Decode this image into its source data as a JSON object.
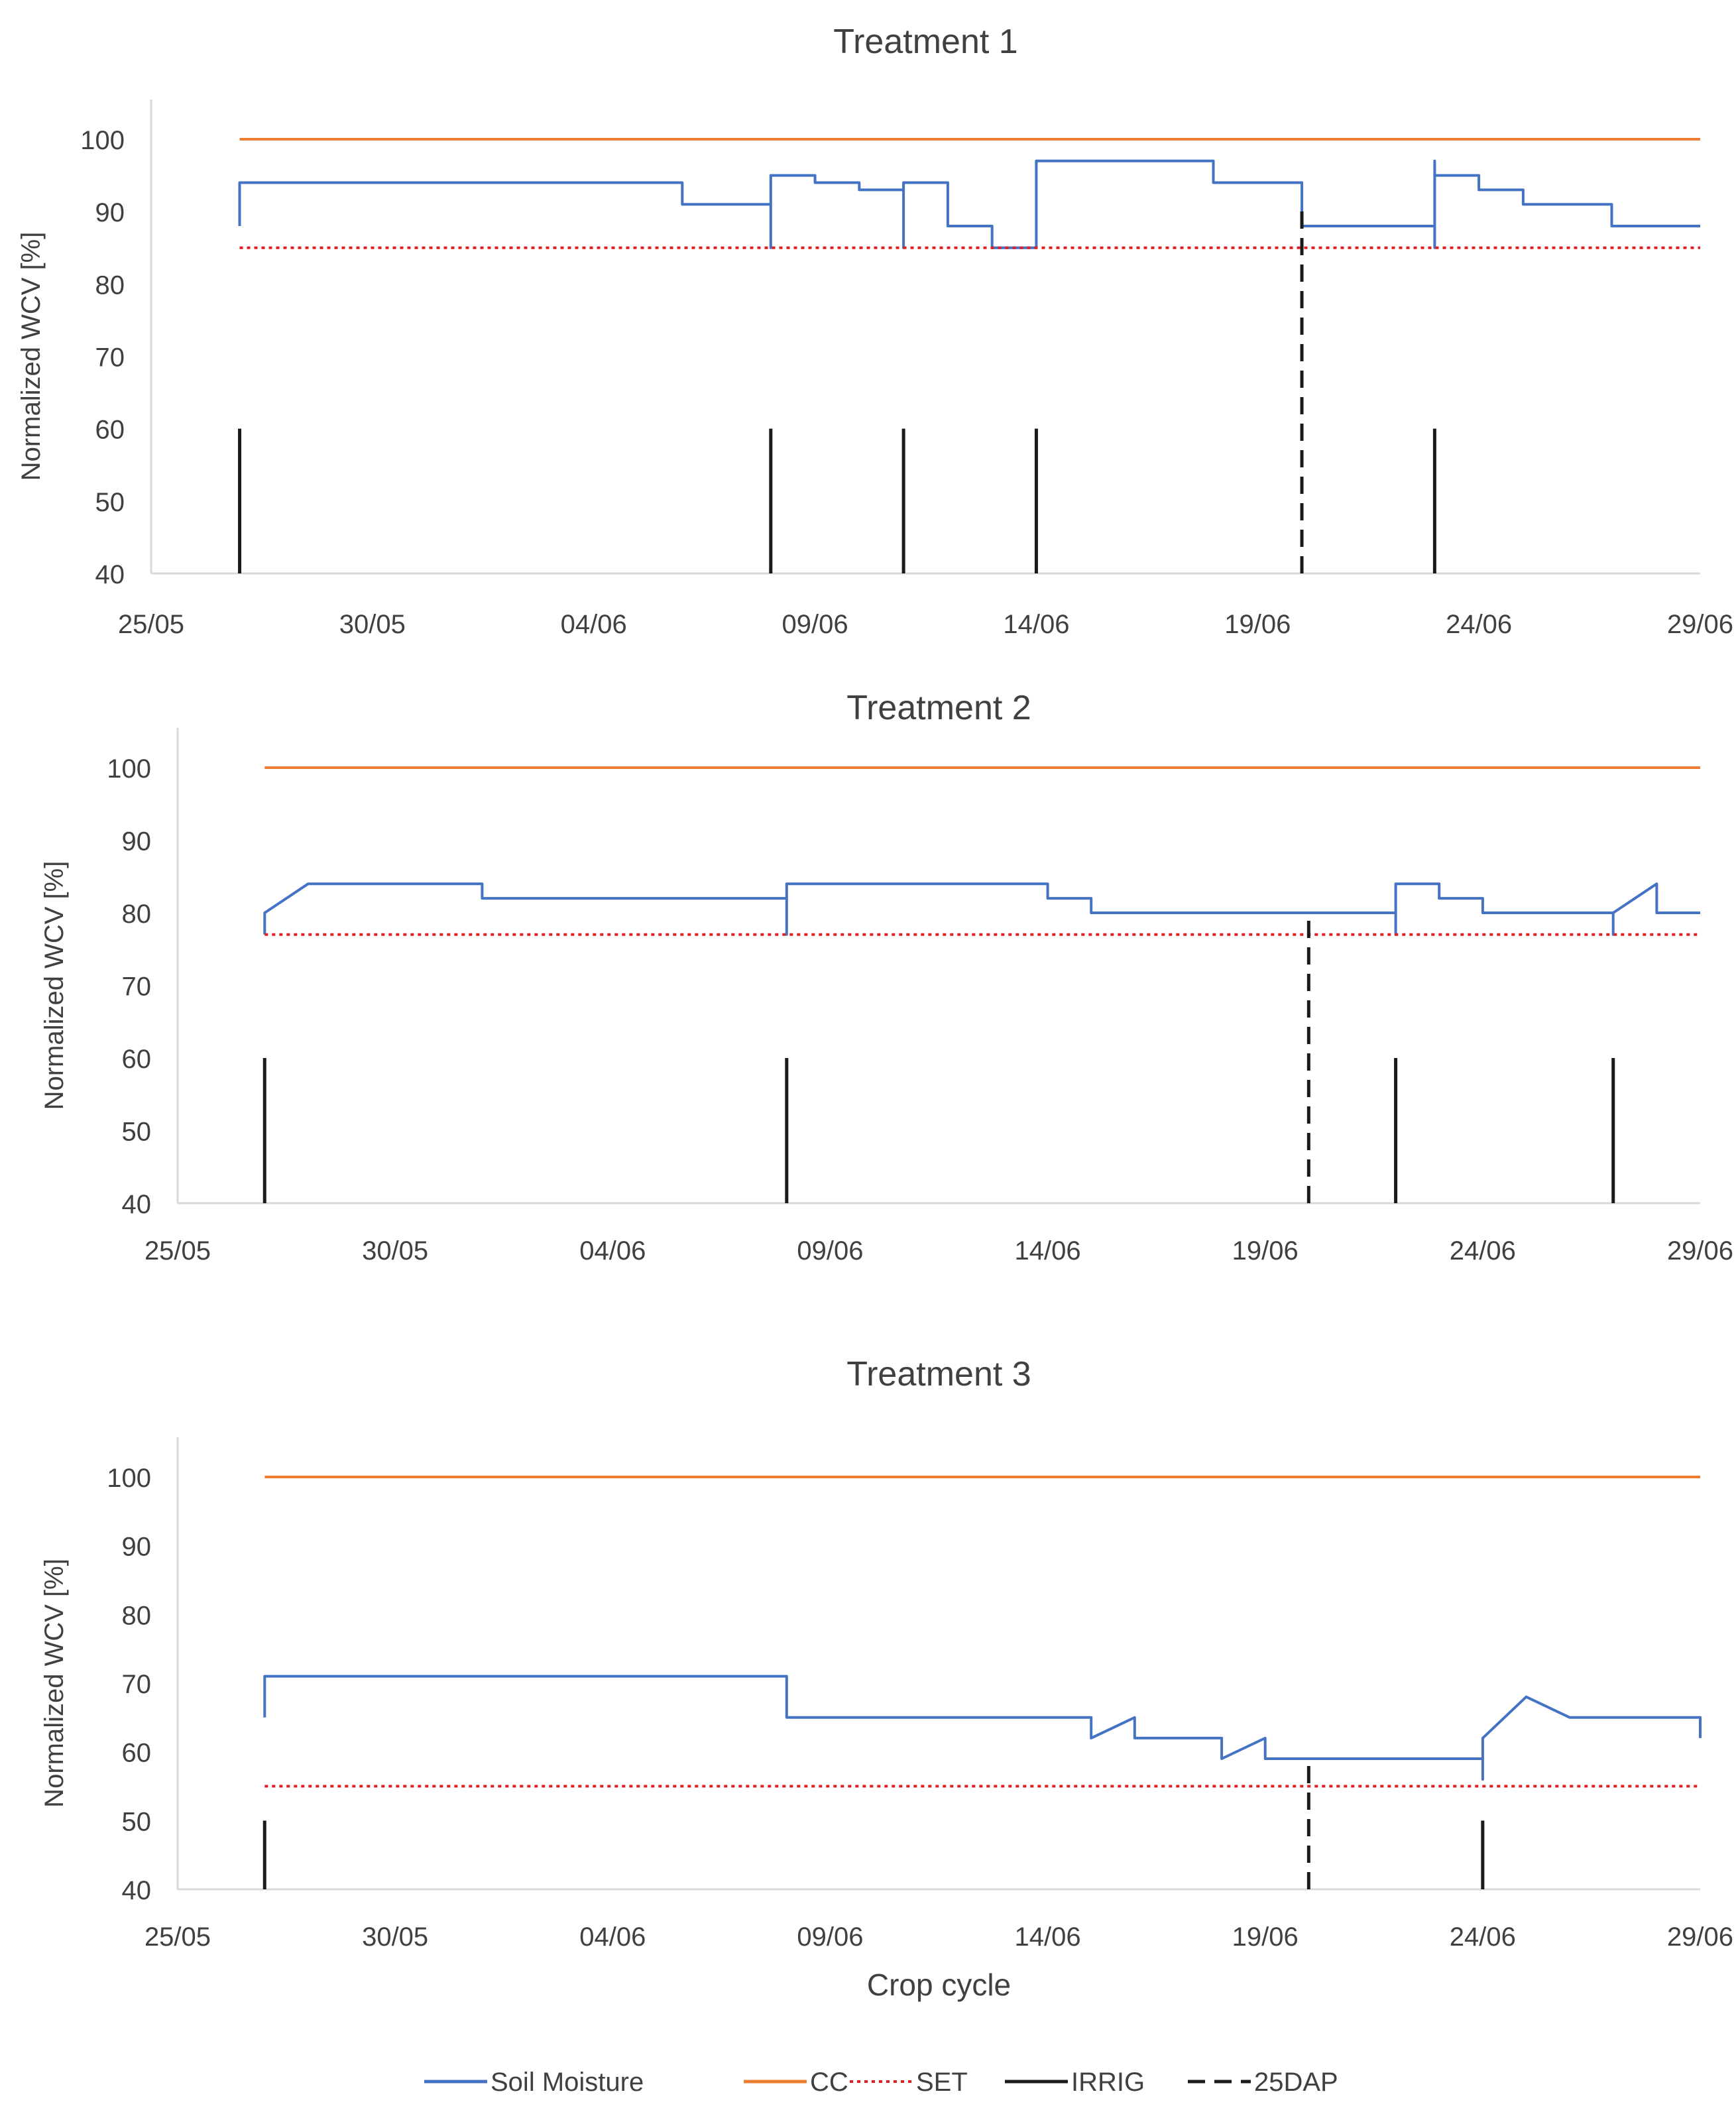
{
  "chart_data": [
    {
      "type": "line",
      "title": "Treatment 1",
      "xlabel": "",
      "ylabel": "Normalized WCV [%]",
      "x_ticks": [
        "25/05",
        "30/05",
        "04/06",
        "09/06",
        "14/06",
        "19/06",
        "24/06",
        "29/06"
      ],
      "y_ticks": [
        "40",
        "50",
        "60",
        "70",
        "80",
        "90",
        "100"
      ],
      "xlim": [
        "2023-05-25",
        "2023-06-29"
      ],
      "ylim": [
        40,
        100
      ],
      "grid": false,
      "colors": {
        "soil_moisture": "#4472c4",
        "cc": "#ed7d31",
        "set": "#e02020",
        "irrig": "#1a1a1a",
        "dap": "#1a1a1a"
      },
      "series": [
        {
          "name": "Soil Moisture",
          "style": "solid",
          "points": [
            [
              "2023-05-27",
              88
            ],
            [
              "2023-05-27",
              94
            ],
            [
              "2023-06-06",
              94
            ],
            [
              "2023-06-06",
              91
            ],
            [
              "2023-06-08",
              91
            ],
            [
              "2023-06-08",
              85
            ],
            [
              "2023-06-08",
              95
            ],
            [
              "2023-06-09",
              95
            ],
            [
              "2023-06-09",
              94
            ],
            [
              "2023-06-10",
              94
            ],
            [
              "2023-06-10",
              93
            ],
            [
              "2023-06-11",
              93
            ],
            [
              "2023-06-11",
              91
            ],
            [
              "2023-06-11",
              85
            ],
            [
              "2023-06-11",
              94
            ],
            [
              "2023-06-12",
              94
            ],
            [
              "2023-06-12",
              91
            ],
            [
              "2023-06-12",
              91
            ],
            [
              "2023-06-12",
              88
            ],
            [
              "2023-06-13",
              88
            ],
            [
              "2023-06-13",
              86
            ],
            [
              "2023-06-13",
              85
            ],
            [
              "2023-06-14",
              85
            ],
            [
              "2023-06-14",
              97
            ],
            [
              "2023-06-18",
              97
            ],
            [
              "2023-06-18",
              94
            ],
            [
              "2023-06-20",
              94
            ],
            [
              "2023-06-20",
              91
            ],
            [
              "2023-06-20",
              88
            ],
            [
              "2023-06-23",
              88
            ],
            [
              "2023-06-23",
              85
            ],
            [
              "2023-06-23",
              97
            ],
            [
              "2023-06-23",
              95
            ],
            [
              "2023-06-24",
              95
            ],
            [
              "2023-06-24",
              93
            ],
            [
              "2023-06-25",
              93
            ],
            [
              "2023-06-25",
              91
            ],
            [
              "2023-06-27",
              91
            ],
            [
              "2023-06-27",
              88
            ],
            [
              "2023-06-29",
              88
            ]
          ]
        },
        {
          "name": "CC",
          "style": "solid",
          "points": [
            [
              "2023-05-27",
              100
            ],
            [
              "2023-06-29",
              100
            ]
          ]
        },
        {
          "name": "SET",
          "style": "dotted",
          "points": [
            [
              "2023-05-27",
              85
            ],
            [
              "2023-06-29",
              85
            ]
          ]
        },
        {
          "name": "IRRIG",
          "style": "solid",
          "x": [
            "2023-05-27",
            "2023-06-08",
            "2023-06-11",
            "2023-06-14",
            "2023-06-23"
          ],
          "y": [
            60,
            60,
            60,
            60,
            60
          ]
        },
        {
          "name": "25DAP",
          "style": "dashed",
          "x": [
            "2023-06-20"
          ],
          "y": [
            91
          ]
        }
      ]
    },
    {
      "type": "line",
      "title": "Treatment 2",
      "xlabel": "",
      "ylabel": "Normalized WCV [%]",
      "x_ticks": [
        "25/05",
        "30/05",
        "04/06",
        "09/06",
        "14/06",
        "19/06",
        "24/06",
        "29/06"
      ],
      "y_ticks": [
        "40",
        "50",
        "60",
        "70",
        "80",
        "90",
        "100"
      ],
      "xlim": [
        "2023-05-25",
        "2023-06-29"
      ],
      "ylim": [
        40,
        100
      ],
      "grid": false,
      "colors": {
        "soil_moisture": "#4472c4",
        "cc": "#ed7d31",
        "set": "#e02020",
        "irrig": "#1a1a1a",
        "dap": "#1a1a1a"
      },
      "series": [
        {
          "name": "Soil Moisture",
          "style": "solid",
          "points": [
            [
              "2023-05-27",
              77
            ],
            [
              "2023-05-27",
              80
            ],
            [
              "2023-05-28",
              84
            ],
            [
              "2023-06-01",
              84
            ],
            [
              "2023-06-01",
              82
            ],
            [
              "2023-06-08",
              82
            ],
            [
              "2023-06-08",
              80
            ],
            [
              "2023-06-08",
              80
            ],
            [
              "2023-06-08",
              77
            ],
            [
              "2023-06-08",
              84
            ],
            [
              "2023-06-14",
              84
            ],
            [
              "2023-06-14",
              82
            ],
            [
              "2023-06-15",
              82
            ],
            [
              "2023-06-15",
              80
            ],
            [
              "2023-06-22",
              80
            ],
            [
              "2023-06-22",
              77
            ],
            [
              "2023-06-22",
              80
            ],
            [
              "2023-06-22",
              84
            ],
            [
              "2023-06-23",
              84
            ],
            [
              "2023-06-23",
              82
            ],
            [
              "2023-06-24",
              82
            ],
            [
              "2023-06-24",
              80
            ],
            [
              "2023-06-27",
              80
            ],
            [
              "2023-06-27",
              77
            ],
            [
              "2023-06-27",
              80
            ],
            [
              "2023-06-28",
              84
            ],
            [
              "2023-06-28",
              80
            ],
            [
              "2023-06-29",
              80
            ]
          ]
        },
        {
          "name": "CC",
          "style": "solid",
          "points": [
            [
              "2023-05-27",
              100
            ],
            [
              "2023-06-29",
              100
            ]
          ]
        },
        {
          "name": "SET",
          "style": "dotted",
          "points": [
            [
              "2023-05-27",
              77
            ],
            [
              "2023-06-29",
              77
            ]
          ]
        },
        {
          "name": "IRRIG",
          "style": "solid",
          "x": [
            "2023-05-27",
            "2023-06-08",
            "2023-06-22",
            "2023-06-27"
          ],
          "y": [
            60,
            60,
            60,
            60
          ]
        },
        {
          "name": "25DAP",
          "style": "dashed",
          "x": [
            "2023-06-20"
          ],
          "y": [
            80
          ]
        }
      ]
    },
    {
      "type": "line",
      "title": "Treatment 3",
      "xlabel": "Crop cycle",
      "ylabel": "Normalized WCV [%]",
      "x_ticks": [
        "25/05",
        "30/05",
        "04/06",
        "09/06",
        "14/06",
        "19/06",
        "24/06",
        "29/06"
      ],
      "y_ticks": [
        "40",
        "50",
        "60",
        "70",
        "80",
        "90",
        "100"
      ],
      "xlim": [
        "2023-05-25",
        "2023-06-29"
      ],
      "ylim": [
        40,
        100
      ],
      "grid": false,
      "colors": {
        "soil_moisture": "#4472c4",
        "cc": "#ed7d31",
        "set": "#e02020",
        "irrig": "#1a1a1a",
        "dap": "#1a1a1a"
      },
      "series": [
        {
          "name": "Soil Moisture",
          "style": "solid",
          "points": [
            [
              "2023-05-27",
              65
            ],
            [
              "2023-05-27",
              68
            ],
            [
              "2023-05-27",
              68
            ],
            [
              "2023-05-27",
              71
            ],
            [
              "2023-06-08",
              71
            ],
            [
              "2023-06-08",
              65
            ],
            [
              "2023-06-15",
              65
            ],
            [
              "2023-06-15",
              62
            ],
            [
              "2023-06-15",
              65
            ],
            [
              "2023-06-15",
              62
            ],
            [
              "2023-06-16",
              65
            ],
            [
              "2023-06-16",
              62
            ],
            [
              "2023-06-18",
              62
            ],
            [
              "2023-06-18",
              59
            ],
            [
              "2023-06-18",
              62
            ],
            [
              "2023-06-18",
              59
            ],
            [
              "2023-06-19",
              62
            ],
            [
              "2023-06-19",
              59
            ],
            [
              "2023-06-24",
              59
            ],
            [
              "2023-06-24",
              56
            ],
            [
              "2023-06-24",
              62
            ],
            [
              "2023-06-25",
              68
            ],
            [
              "2023-06-25",
              68
            ],
            [
              "2023-06-26",
              65
            ],
            [
              "2023-06-29",
              65
            ],
            [
              "2023-06-29",
              62
            ]
          ]
        },
        {
          "name": "CC",
          "style": "solid",
          "points": [
            [
              "2023-05-27",
              100
            ],
            [
              "2023-06-29",
              100
            ]
          ]
        },
        {
          "name": "SET",
          "style": "dotted",
          "points": [
            [
              "2023-05-27",
              55
            ],
            [
              "2023-06-29",
              55
            ]
          ]
        },
        {
          "name": "IRRIG",
          "style": "solid",
          "x": [
            "2023-05-27",
            "2023-06-24"
          ],
          "y": [
            50,
            50
          ]
        },
        {
          "name": "25DAP",
          "style": "dashed",
          "x": [
            "2023-06-20"
          ],
          "y": [
            59
          ]
        }
      ]
    }
  ],
  "legend": {
    "placement": "bottom",
    "items": [
      {
        "label": "Soil Moisture",
        "color": "#4472c4",
        "style": "solid"
      },
      {
        "label": "CC",
        "color": "#ed7d31",
        "style": "solid"
      },
      {
        "label": "SET",
        "color": "#e02020",
        "style": "dotted"
      },
      {
        "label": "IRRIG",
        "color": "#1a1a1a",
        "style": "solid"
      },
      {
        "label": "25DAP",
        "color": "#1a1a1a",
        "style": "dashed"
      }
    ]
  }
}
